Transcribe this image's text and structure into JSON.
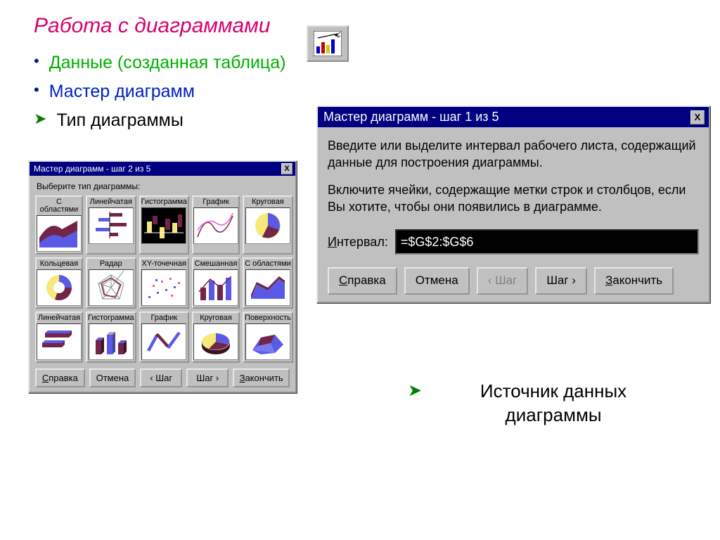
{
  "colors": {
    "title": "#d6006c",
    "bullet_dot": "#001a8a",
    "bullet_arrow": "#008000",
    "text_green": "#00b000",
    "text_blue": "#0020c0",
    "win_bg": "#c0c0c0",
    "titlebar": "#000080",
    "titlebar_text": "#ffffff",
    "chart_primary": "#722548",
    "chart_secondary": "#5a5ae6",
    "chart_yellow": "#f5e97a",
    "chart_magenta": "#e85dcb"
  },
  "title": "Работа с диаграммами",
  "bullets": [
    {
      "marker": "dot",
      "text": "Данные (созданная таблица)",
      "cls": "txt-green"
    },
    {
      "marker": "dot",
      "text": "Мастер диаграмм",
      "cls": "txt-blue"
    },
    {
      "marker": "arrow",
      "text": "Тип диаграммы",
      "cls": "txt-black"
    }
  ],
  "source_note": "Источник данных диаграммы",
  "dlg1": {
    "title": "Мастер диаграмм - шаг 1 из 5",
    "para1": "Введите или выделите интервал рабочего листа, содержащий данные для построения диаграммы.",
    "para2": "Включите ячейки, содержащие метки строк и столбцов, если Вы хотите, чтобы они появились в диаграмме.",
    "interval_label_pre": "И",
    "interval_label": "нтервал:",
    "interval_value": "=$G$2:$G$6",
    "buttons": {
      "help_u": "С",
      "help": "правка",
      "cancel": "Отмена",
      "back": "‹ Шаг",
      "next": "Шаг ›",
      "finish_u": "З",
      "finish": "акончить"
    }
  },
  "dlg2": {
    "title": "Мастер диаграмм - шаг 2 из 5",
    "prompt": "Выберите тип диаграммы:",
    "buttons": {
      "help_u": "С",
      "help": "правка",
      "cancel": "Отмена",
      "back": "‹ Шаг",
      "next": "Шаг ›",
      "finish_u": "З",
      "finish": "акончить"
    },
    "cells": [
      {
        "label": "С областями",
        "kind": "area",
        "sel": false
      },
      {
        "label": "Линейчатая",
        "kind": "hbar",
        "sel": false
      },
      {
        "label": "Гистограмма",
        "kind": "col-inv",
        "sel": true
      },
      {
        "label": "График",
        "kind": "lines",
        "sel": false
      },
      {
        "label": "Круговая",
        "kind": "pie",
        "sel": false
      },
      {
        "label": "Кольцевая",
        "kind": "donut",
        "sel": false
      },
      {
        "label": "Радар",
        "kind": "radar",
        "sel": false
      },
      {
        "label": "XY-точечная",
        "kind": "scatter",
        "sel": false
      },
      {
        "label": "Смешанная",
        "kind": "combo",
        "sel": false
      },
      {
        "label": "С областями",
        "kind": "area3d",
        "sel": false
      },
      {
        "label": "Линейчатая",
        "kind": "hbar3d",
        "sel": false
      },
      {
        "label": "Гистограмма",
        "kind": "col3d",
        "sel": false
      },
      {
        "label": "График",
        "kind": "ribbon",
        "sel": false
      },
      {
        "label": "Круговая",
        "kind": "pie3d",
        "sel": false
      },
      {
        "label": "Поверхность",
        "kind": "surface",
        "sel": false
      }
    ]
  }
}
